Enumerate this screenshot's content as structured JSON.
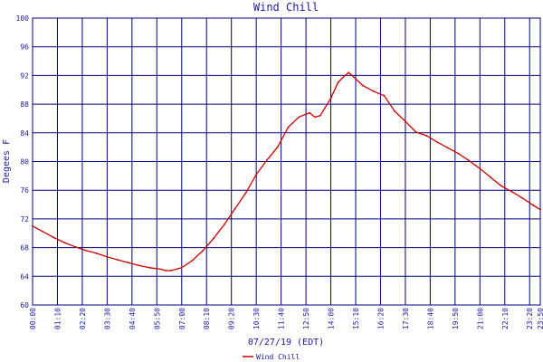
{
  "chart_data": {
    "type": "line",
    "title": "Wind Chill",
    "xlabel": "07/27/19 (EDT)",
    "ylabel": "Degees F",
    "ylim": [
      60,
      100
    ],
    "yticks": [
      60,
      64,
      68,
      72,
      76,
      80,
      84,
      88,
      92,
      96,
      100
    ],
    "xticks": [
      "00:00",
      "01:10",
      "02:20",
      "03:30",
      "04:40",
      "05:50",
      "07:00",
      "08:10",
      "09:20",
      "10:30",
      "11:40",
      "12:50",
      "14:00",
      "15:10",
      "16:20",
      "17:30",
      "18:40",
      "19:50",
      "21:00",
      "22:10",
      "23:20",
      "23:50"
    ],
    "grid": true,
    "legend_position": "bottom-center",
    "colors": {
      "series": "#cc0000",
      "grid": "#000080",
      "text": "#1a1aa0"
    },
    "series": [
      {
        "name": "Wind Chill",
        "x": [
          "00:00",
          "00:30",
          "01:00",
          "01:30",
          "02:00",
          "02:30",
          "03:00",
          "03:30",
          "04:00",
          "04:30",
          "05:00",
          "05:30",
          "06:00",
          "06:15",
          "06:30",
          "07:00",
          "07:30",
          "08:00",
          "08:30",
          "09:00",
          "09:30",
          "10:00",
          "10:30",
          "11:00",
          "11:30",
          "12:00",
          "12:30",
          "13:00",
          "13:15",
          "13:30",
          "14:00",
          "14:20",
          "14:40",
          "14:50",
          "15:00",
          "15:30",
          "16:00",
          "16:30",
          "17:00",
          "17:30",
          "18:00",
          "18:30",
          "19:00",
          "19:30",
          "20:00",
          "20:30",
          "21:00",
          "21:30",
          "22:00",
          "22:30",
          "23:00",
          "23:30",
          "23:50"
        ],
        "values": [
          71.0,
          70.2,
          69.4,
          68.7,
          68.1,
          67.6,
          67.2,
          66.7,
          66.3,
          65.9,
          65.5,
          65.2,
          65.0,
          64.8,
          64.8,
          65.2,
          66.2,
          67.6,
          69.3,
          71.2,
          73.4,
          75.6,
          78.2,
          80.2,
          82.0,
          84.8,
          86.2,
          86.8,
          86.2,
          86.4,
          88.8,
          91.0,
          92.0,
          92.4,
          92.0,
          90.6,
          89.8,
          89.2,
          87.0,
          85.6,
          84.1,
          83.6,
          82.7,
          81.9,
          81.1,
          80.1,
          79.0,
          77.8,
          76.6,
          75.8,
          74.9,
          73.9,
          73.3
        ]
      }
    ]
  }
}
